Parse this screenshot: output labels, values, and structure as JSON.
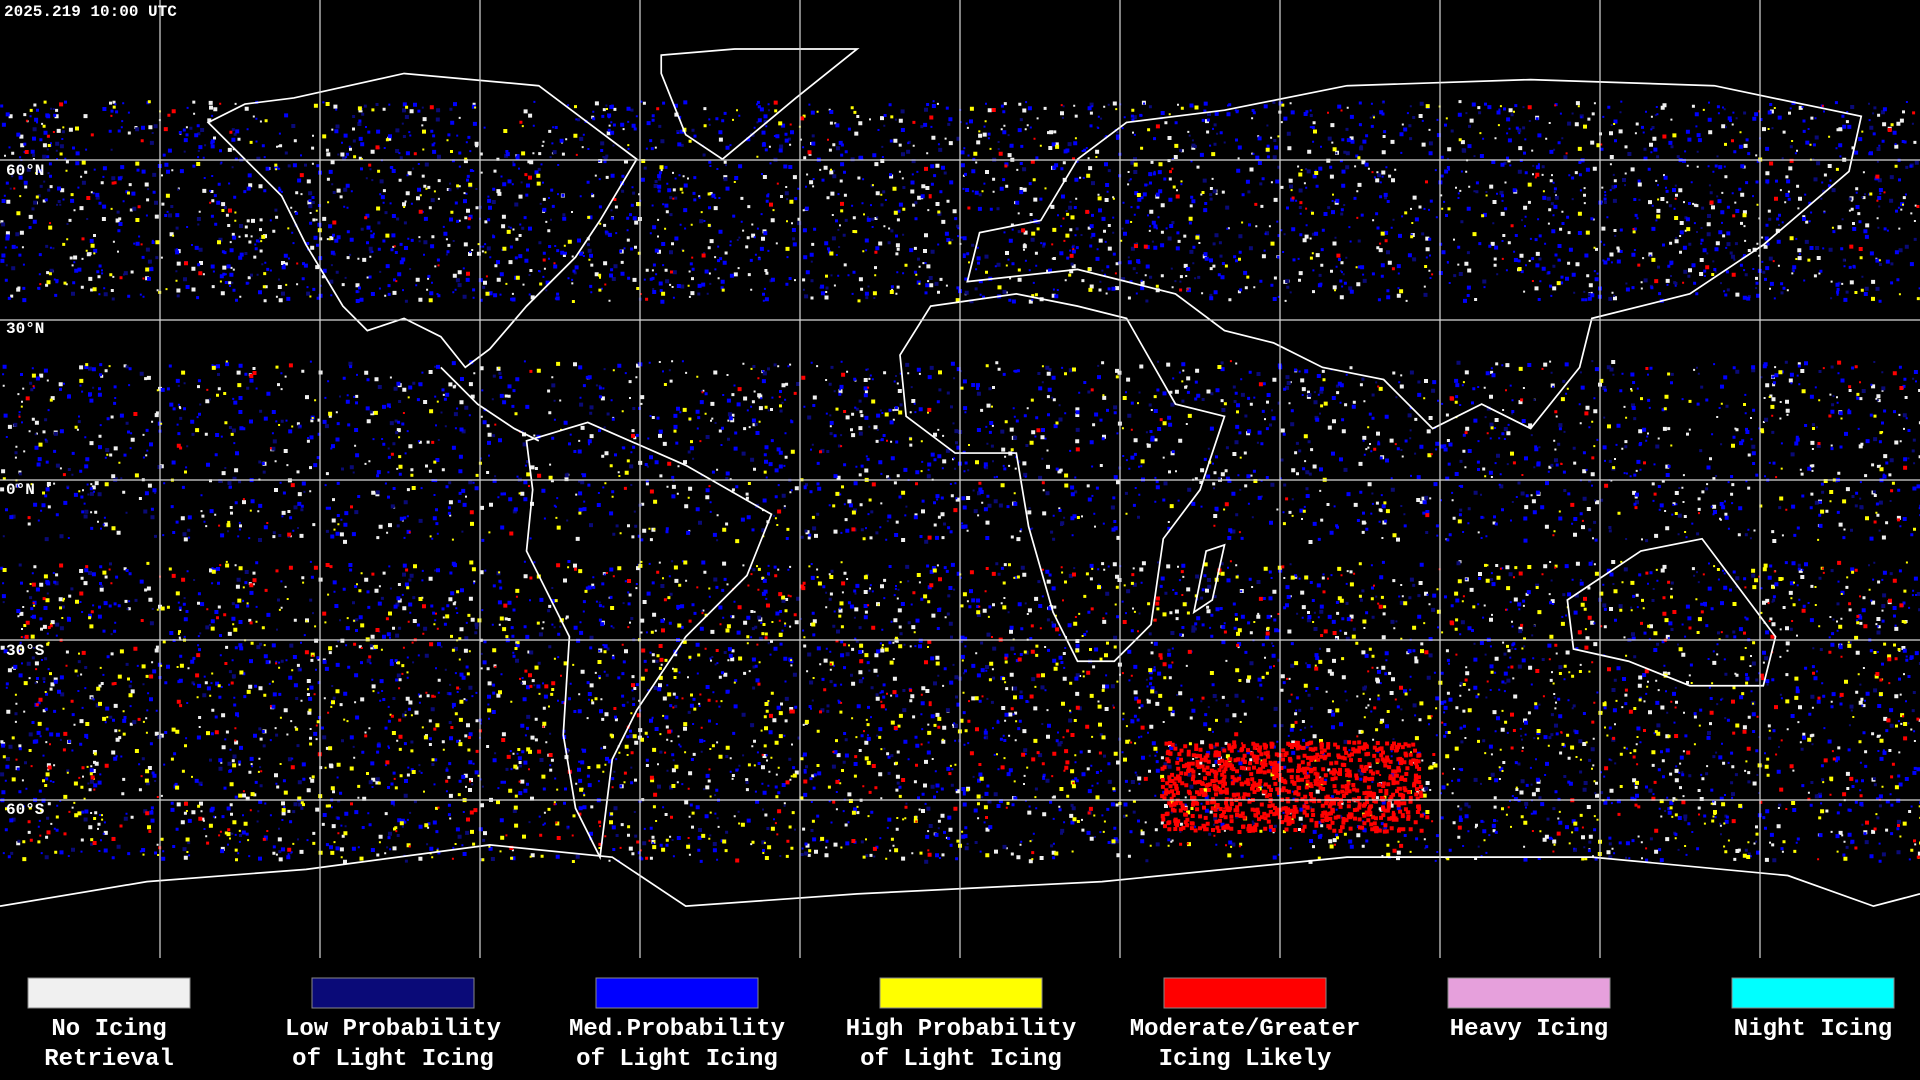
{
  "timestamp": "2025.219 10:00 UTC",
  "latitude_labels": [
    "60°N",
    "30°N",
    "0°N",
    "30°S",
    "60°S"
  ],
  "legend": [
    {
      "label_lines": [
        "No Icing",
        "Retrieval"
      ],
      "color": "#f0f0f0"
    },
    {
      "label_lines": [
        "Low Probability",
        "of Light Icing"
      ],
      "color": "#0a0a78"
    },
    {
      "label_lines": [
        "Med.Probability",
        "of Light Icing"
      ],
      "color": "#0000ff"
    },
    {
      "label_lines": [
        "High Probability",
        "of Light Icing"
      ],
      "color": "#ffff00"
    },
    {
      "label_lines": [
        "Moderate/Greater",
        "Icing Likely"
      ],
      "color": "#ff0000"
    },
    {
      "label_lines": [
        "Heavy Icing"
      ],
      "color": "#e6a0dc"
    },
    {
      "label_lines": [
        "Night Icing"
      ],
      "color": "#00ffff"
    }
  ]
}
